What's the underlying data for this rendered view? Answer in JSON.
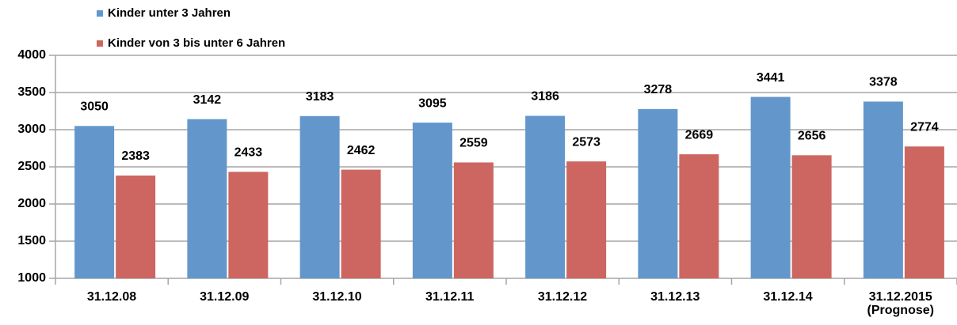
{
  "chart_data": {
    "type": "bar",
    "categories": [
      "31.12.08",
      "31.12.09",
      "31.12.10",
      "31.12.11",
      "31.12.12",
      "31.12.13",
      "31.12.14",
      "31.12.2015\n(Prognose)"
    ],
    "series": [
      {
        "name": "Kinder unter 3 Jahren",
        "color": "#6397cc",
        "values": [
          3050,
          3142,
          3183,
          3095,
          3186,
          3278,
          3441,
          3378
        ]
      },
      {
        "name": "Kinder von 3 bis unter 6 Jahren",
        "color": "#cd6660",
        "values": [
          2383,
          2433,
          2462,
          2559,
          2573,
          2669,
          2656,
          2774
        ]
      }
    ],
    "ylim": [
      1000,
      4000
    ],
    "yticks": [
      1000,
      1500,
      2000,
      2500,
      3000,
      3500,
      4000
    ],
    "grid": true,
    "legend": "top-left"
  }
}
